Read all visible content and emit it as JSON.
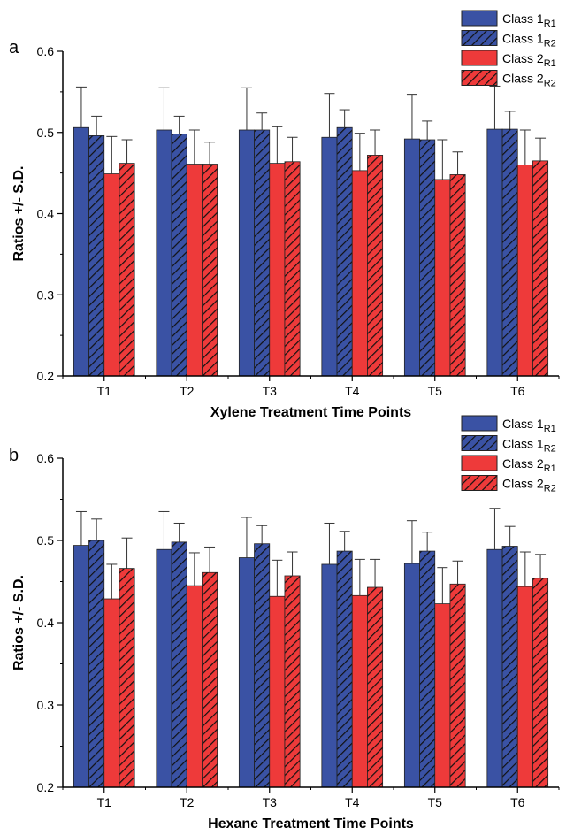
{
  "legend_labels": [
    {
      "base": "Class 1",
      "sub": "R1"
    },
    {
      "base": "Class 1",
      "sub": "R2"
    },
    {
      "base": "Class 2",
      "sub": "R1"
    },
    {
      "base": "Class 2",
      "sub": "R2"
    }
  ],
  "colors": {
    "blue": "#3a52a4",
    "red": "#ee3a3a",
    "axis": "#000000",
    "error": "#333333"
  },
  "chart_data": [
    {
      "type": "bar",
      "panel_label": "a",
      "categories": [
        "T1",
        "T2",
        "T3",
        "T4",
        "T5",
        "T6"
      ],
      "xlabel": "Xylene Treatment Time Points",
      "ylabel": "Ratios +/- S.D.",
      "ylim": [
        0.2,
        0.6
      ],
      "yticks": [
        "0.2",
        "0.3",
        "0.4",
        "0.5",
        "0.6"
      ],
      "grid": false,
      "legend_position": "top-right",
      "series": [
        {
          "name": "Class 1R1",
          "color": "blue",
          "hatch": false,
          "values": [
            0.506,
            0.503,
            0.503,
            0.494,
            0.492,
            0.504
          ],
          "errors": [
            0.05,
            0.052,
            0.052,
            0.054,
            0.055,
            0.053
          ]
        },
        {
          "name": "Class 1R2",
          "color": "blue",
          "hatch": true,
          "values": [
            0.496,
            0.498,
            0.503,
            0.506,
            0.491,
            0.504
          ],
          "errors": [
            0.024,
            0.022,
            0.021,
            0.022,
            0.023,
            0.022
          ]
        },
        {
          "name": "Class 2R1",
          "color": "red",
          "hatch": false,
          "values": [
            0.449,
            0.461,
            0.462,
            0.453,
            0.442,
            0.46
          ],
          "errors": [
            0.046,
            0.042,
            0.045,
            0.046,
            0.049,
            0.043
          ]
        },
        {
          "name": "Class 2R2",
          "color": "red",
          "hatch": true,
          "values": [
            0.462,
            0.461,
            0.464,
            0.472,
            0.448,
            0.465
          ],
          "errors": [
            0.029,
            0.027,
            0.03,
            0.031,
            0.028,
            0.028
          ]
        }
      ]
    },
    {
      "type": "bar",
      "panel_label": "b",
      "categories": [
        "T1",
        "T2",
        "T3",
        "T4",
        "T5",
        "T6"
      ],
      "xlabel": "Hexane Treatment Time Points",
      "ylabel": "Ratios +/- S.D.",
      "ylim": [
        0.2,
        0.6
      ],
      "yticks": [
        "0.2",
        "0.3",
        "0.4",
        "0.5",
        "0.6"
      ],
      "grid": false,
      "legend_position": "top-right",
      "series": [
        {
          "name": "Class 1R1",
          "color": "blue",
          "hatch": false,
          "values": [
            0.494,
            0.489,
            0.479,
            0.471,
            0.472,
            0.489
          ],
          "errors": [
            0.041,
            0.046,
            0.049,
            0.05,
            0.052,
            0.05
          ]
        },
        {
          "name": "Class 1R2",
          "color": "blue",
          "hatch": true,
          "values": [
            0.5,
            0.498,
            0.496,
            0.487,
            0.487,
            0.493
          ],
          "errors": [
            0.026,
            0.023,
            0.022,
            0.024,
            0.023,
            0.024
          ]
        },
        {
          "name": "Class 2R1",
          "color": "red",
          "hatch": false,
          "values": [
            0.429,
            0.445,
            0.432,
            0.433,
            0.423,
            0.444
          ],
          "errors": [
            0.042,
            0.04,
            0.044,
            0.044,
            0.044,
            0.042
          ]
        },
        {
          "name": "Class 2R2",
          "color": "red",
          "hatch": true,
          "values": [
            0.466,
            0.461,
            0.457,
            0.443,
            0.447,
            0.454
          ],
          "errors": [
            0.037,
            0.031,
            0.029,
            0.034,
            0.028,
            0.029
          ]
        }
      ]
    }
  ]
}
